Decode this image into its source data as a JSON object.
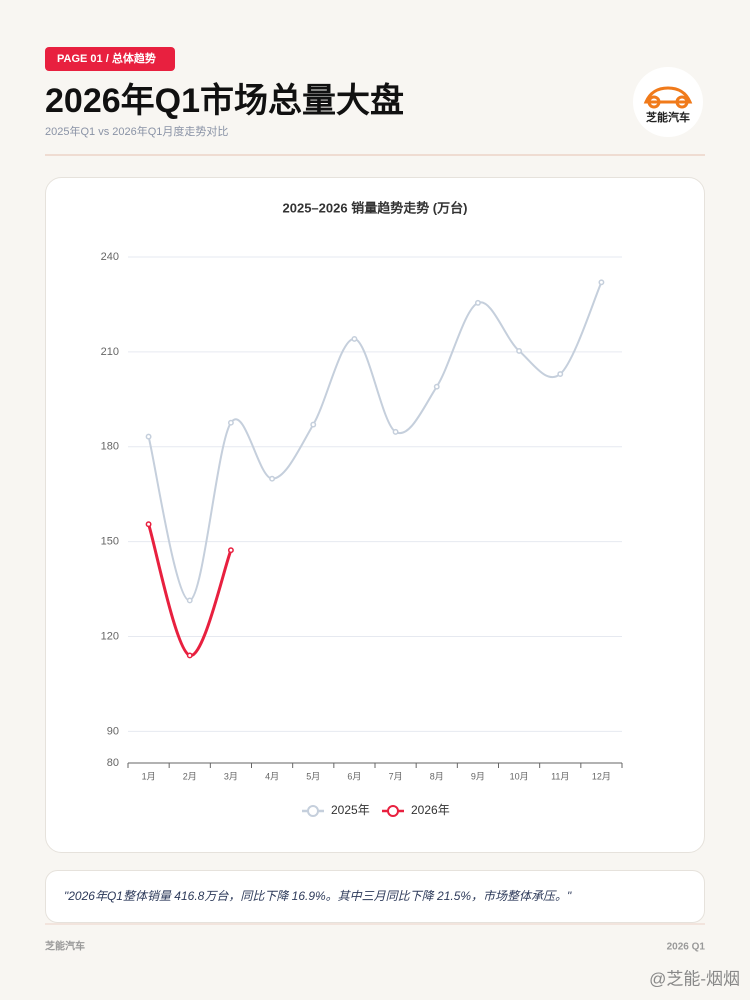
{
  "badge": "PAGE 01 / 总体趋势",
  "title": "2026年Q1市场总量大盘",
  "subtitle": "2025年Q1 vs 2026年Q1月度走势对比",
  "logo": "芝能汽车",
  "chart_data": {
    "type": "line",
    "title": "2025–2026 销量趋势走势 (万台)",
    "categories": [
      "1月",
      "2月",
      "3月",
      "4月",
      "5月",
      "6月",
      "7月",
      "8月",
      "9月",
      "10月",
      "11月",
      "12月"
    ],
    "series": [
      {
        "name": "2025年",
        "color": "#c5cfdc",
        "values": [
          183.2,
          131.4,
          187.6,
          169.9,
          187,
          214.1,
          184.7,
          199,
          225.5,
          210.3,
          203,
          232
        ]
      },
      {
        "name": "2026年",
        "color": "#e8203f",
        "values": [
          155.5,
          114,
          147.3,
          null,
          null,
          null,
          null,
          null,
          null,
          null,
          null,
          null
        ]
      }
    ],
    "ylim": [
      80,
      240
    ],
    "yticks": [
      80,
      90,
      120,
      150,
      180,
      210,
      240
    ],
    "grid": true,
    "smooth": true,
    "legend": "bottom"
  },
  "quote": "\"2026年Q1整体销量 416.8万台，同比下降 16.9%。其中三月同比下降 21.5%，市场整体承压。\"",
  "footer": {
    "left": "芝能汽车",
    "right": "2026 Q1"
  },
  "watermark": "@芝能-烟烟"
}
